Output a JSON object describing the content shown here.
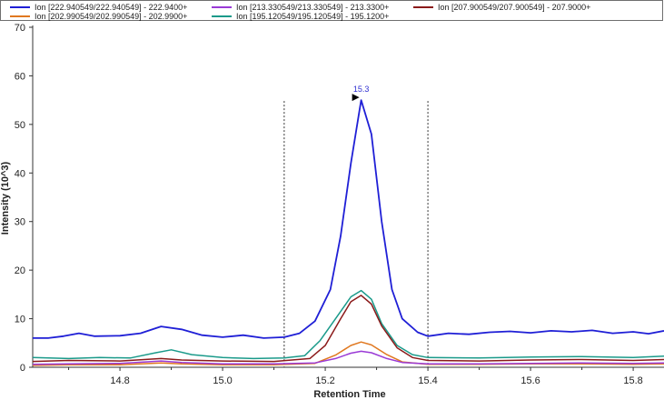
{
  "legend": [
    {
      "label": "Ion [222.940549/222.940549] - 222.9400+",
      "color": "#1f1fd6"
    },
    {
      "label": "Ion [213.330549/213.330549] - 213.3300+",
      "color": "#9a3ad6"
    },
    {
      "label": "Ion [207.900549/207.900549] - 207.9000+",
      "color": "#8b1a1a"
    },
    {
      "label": "Ion [202.990549/202.990549] - 202.9900+",
      "color": "#e07820"
    },
    {
      "label": "Ion [195.120549/195.120549] - 195.1200+",
      "color": "#1a9a8a"
    }
  ],
  "chart_data": {
    "type": "line",
    "xlabel": "Retention Time",
    "ylabel": "Intensity (10^3)",
    "xlim": [
      14.63,
      15.86
    ],
    "ylim": [
      0,
      70
    ],
    "xticks": [
      14.8,
      15.0,
      15.2,
      15.4,
      15.6,
      15.8
    ],
    "yticks": [
      0,
      10,
      20,
      30,
      40,
      50,
      60,
      70
    ],
    "grid": false,
    "legend_position": "top",
    "vlines": [
      15.12,
      15.4
    ],
    "peak_annotation": {
      "x": 15.27,
      "y": 55,
      "label": "15.3"
    },
    "series": [
      {
        "name": "Ion [222.940549/222.940549] - 222.9400+",
        "color": "#1f1fd6",
        "points": [
          [
            14.63,
            6.0
          ],
          [
            14.66,
            6.0
          ],
          [
            14.69,
            6.4
          ],
          [
            14.72,
            7.0
          ],
          [
            14.75,
            6.4
          ],
          [
            14.8,
            6.5
          ],
          [
            14.84,
            7.0
          ],
          [
            14.88,
            8.4
          ],
          [
            14.92,
            7.8
          ],
          [
            14.96,
            6.6
          ],
          [
            15.0,
            6.2
          ],
          [
            15.04,
            6.6
          ],
          [
            15.08,
            6.0
          ],
          [
            15.12,
            6.2
          ],
          [
            15.15,
            7.0
          ],
          [
            15.18,
            9.5
          ],
          [
            15.21,
            16
          ],
          [
            15.23,
            27
          ],
          [
            15.25,
            42
          ],
          [
            15.27,
            55
          ],
          [
            15.29,
            48
          ],
          [
            15.31,
            30
          ],
          [
            15.33,
            16
          ],
          [
            15.35,
            10
          ],
          [
            15.38,
            7.2
          ],
          [
            15.4,
            6.4
          ],
          [
            15.44,
            7.0
          ],
          [
            15.48,
            6.8
          ],
          [
            15.52,
            7.2
          ],
          [
            15.56,
            7.4
          ],
          [
            15.6,
            7.1
          ],
          [
            15.64,
            7.5
          ],
          [
            15.68,
            7.3
          ],
          [
            15.72,
            7.6
          ],
          [
            15.76,
            7.0
          ],
          [
            15.8,
            7.3
          ],
          [
            15.83,
            6.9
          ],
          [
            15.86,
            7.5
          ]
        ]
      },
      {
        "name": "Ion [213.330549/213.330549] - 213.3300+",
        "color": "#9a3ad6",
        "points": [
          [
            14.63,
            0.6
          ],
          [
            14.7,
            0.7
          ],
          [
            14.8,
            0.8
          ],
          [
            14.88,
            1.3
          ],
          [
            14.92,
            1.0
          ],
          [
            15.0,
            0.7
          ],
          [
            15.1,
            0.7
          ],
          [
            15.18,
            0.9
          ],
          [
            15.22,
            1.8
          ],
          [
            15.25,
            2.9
          ],
          [
            15.27,
            3.3
          ],
          [
            15.29,
            3.0
          ],
          [
            15.32,
            1.8
          ],
          [
            15.35,
            1.0
          ],
          [
            15.4,
            0.7
          ],
          [
            15.5,
            0.7
          ],
          [
            15.6,
            0.8
          ],
          [
            15.7,
            0.9
          ],
          [
            15.8,
            0.8
          ],
          [
            15.86,
            0.9
          ]
        ]
      },
      {
        "name": "Ion [207.900549/207.900549] - 207.9000+",
        "color": "#8b1a1a",
        "points": [
          [
            14.63,
            1.2
          ],
          [
            14.7,
            1.4
          ],
          [
            14.8,
            1.3
          ],
          [
            14.88,
            1.8
          ],
          [
            14.92,
            1.5
          ],
          [
            15.0,
            1.3
          ],
          [
            15.1,
            1.2
          ],
          [
            15.17,
            1.8
          ],
          [
            15.2,
            4.5
          ],
          [
            15.23,
            10
          ],
          [
            15.25,
            13.5
          ],
          [
            15.27,
            14.8
          ],
          [
            15.29,
            13
          ],
          [
            15.31,
            8.5
          ],
          [
            15.34,
            4.0
          ],
          [
            15.37,
            2.0
          ],
          [
            15.4,
            1.4
          ],
          [
            15.5,
            1.3
          ],
          [
            15.6,
            1.5
          ],
          [
            15.7,
            1.6
          ],
          [
            15.8,
            1.4
          ],
          [
            15.86,
            1.6
          ]
        ]
      },
      {
        "name": "Ion [202.990549/202.990549] - 202.9900+",
        "color": "#e07820",
        "points": [
          [
            14.63,
            0.4
          ],
          [
            14.7,
            0.5
          ],
          [
            14.8,
            0.5
          ],
          [
            14.88,
            0.9
          ],
          [
            14.92,
            0.7
          ],
          [
            15.0,
            0.5
          ],
          [
            15.1,
            0.5
          ],
          [
            15.18,
            0.8
          ],
          [
            15.22,
            2.5
          ],
          [
            15.25,
            4.5
          ],
          [
            15.27,
            5.2
          ],
          [
            15.29,
            4.6
          ],
          [
            15.32,
            2.6
          ],
          [
            15.35,
            1.1
          ],
          [
            15.4,
            0.6
          ],
          [
            15.5,
            0.6
          ],
          [
            15.6,
            0.7
          ],
          [
            15.7,
            0.7
          ],
          [
            15.8,
            0.6
          ],
          [
            15.86,
            0.7
          ]
        ]
      },
      {
        "name": "Ion [195.120549/195.120549] - 195.1200+",
        "color": "#1a9a8a",
        "points": [
          [
            14.63,
            2.0
          ],
          [
            14.7,
            1.8
          ],
          [
            14.76,
            2.0
          ],
          [
            14.82,
            1.9
          ],
          [
            14.87,
            3.0
          ],
          [
            14.9,
            3.6
          ],
          [
            14.94,
            2.6
          ],
          [
            15.0,
            2.0
          ],
          [
            15.06,
            1.8
          ],
          [
            15.12,
            1.9
          ],
          [
            15.16,
            2.4
          ],
          [
            15.19,
            5.5
          ],
          [
            15.22,
            10
          ],
          [
            15.25,
            14.5
          ],
          [
            15.27,
            15.8
          ],
          [
            15.29,
            14
          ],
          [
            15.31,
            9
          ],
          [
            15.34,
            4.5
          ],
          [
            15.37,
            2.6
          ],
          [
            15.4,
            2.0
          ],
          [
            15.5,
            1.9
          ],
          [
            15.6,
            2.1
          ],
          [
            15.7,
            2.2
          ],
          [
            15.8,
            2.0
          ],
          [
            15.86,
            2.3
          ]
        ]
      }
    ]
  }
}
